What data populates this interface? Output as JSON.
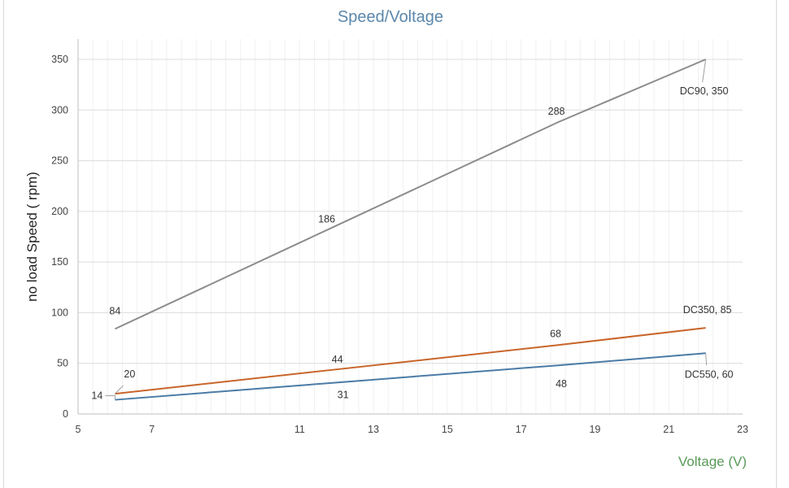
{
  "chart_data": {
    "type": "line",
    "title": "Speed/Voltage",
    "xlabel": "Voltage (V)",
    "ylabel": "no load Speed ( rpm)",
    "xlim": [
      5,
      23
    ],
    "ylim": [
      0,
      350
    ],
    "x_ticks": [
      5,
      7,
      11,
      13,
      15,
      17,
      19,
      21,
      23
    ],
    "y_ticks": [
      0,
      50,
      100,
      150,
      200,
      250,
      300,
      350
    ],
    "grid": true,
    "legend": "none (series labeled at line end)",
    "series": [
      {
        "name": "DC90",
        "color": "#8c8c8c",
        "x": [
          6,
          12,
          18,
          22
        ],
        "values": [
          84,
          186,
          288,
          350
        ],
        "labels": [
          "84",
          "186",
          "288",
          "DC90, 350"
        ]
      },
      {
        "name": "DC350",
        "color": "#c8652a",
        "x": [
          6,
          12,
          18,
          22
        ],
        "values": [
          20,
          44,
          68,
          85
        ],
        "labels": [
          "20",
          "44",
          "68",
          "DC350, 85"
        ]
      },
      {
        "name": "DC550",
        "color": "#4a7ba6",
        "x": [
          6,
          12,
          18,
          22
        ],
        "values": [
          14,
          31,
          48,
          60
        ],
        "labels": [
          "14",
          "31",
          "48",
          "DC550, 60"
        ]
      }
    ]
  }
}
